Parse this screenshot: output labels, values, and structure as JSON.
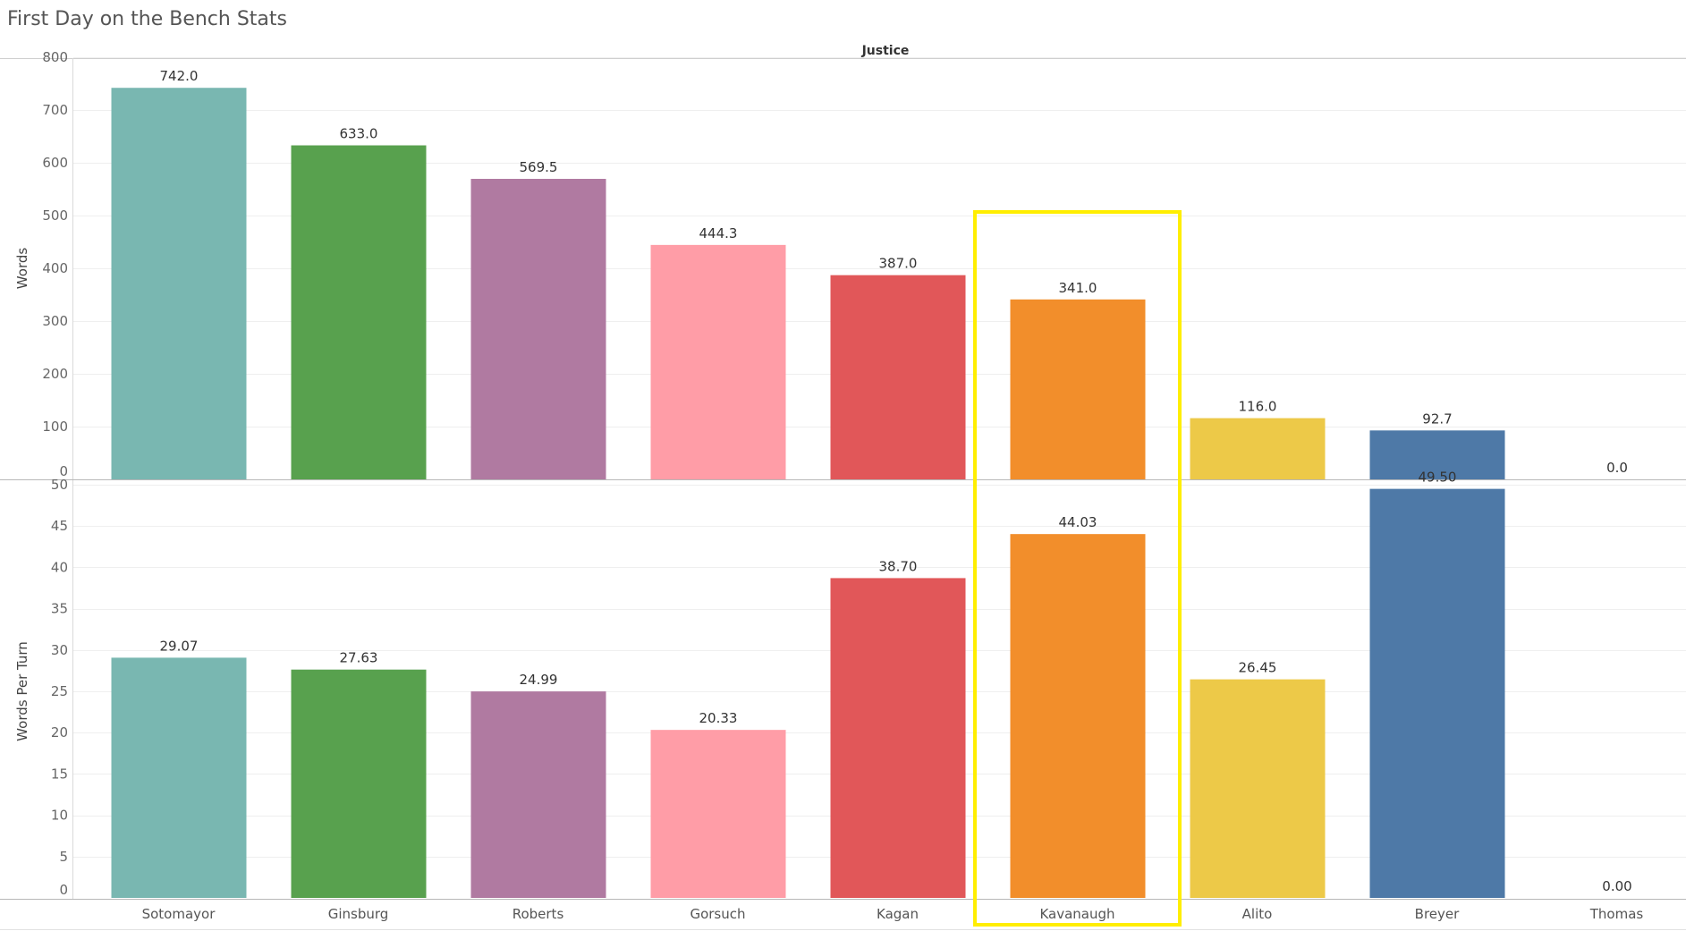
{
  "title": "First Day on the Bench Stats",
  "column_header": "Justice",
  "highlight": {
    "category": "Kavanaugh",
    "color": "#ffee00"
  },
  "chart_data": [
    {
      "type": "bar",
      "ylabel": "Words",
      "ylim": [
        0,
        800
      ],
      "yticks": [
        0,
        100,
        200,
        300,
        400,
        500,
        600,
        700,
        800
      ],
      "categories": [
        "Sotomayor",
        "Ginsburg",
        "Roberts",
        "Gorsuch",
        "Kagan",
        "Kavanaugh",
        "Alito",
        "Breyer",
        "Thomas"
      ],
      "values": [
        742.0,
        633.0,
        569.5,
        444.3,
        387.0,
        341.0,
        116.0,
        92.7,
        0.0
      ],
      "labels": [
        "742.0",
        "633.0",
        "569.5",
        "444.3",
        "387.0",
        "341.0",
        "116.0",
        "92.7",
        "0.0"
      ],
      "colors": [
        "#79b7b1",
        "#58a14e",
        "#b07aa1",
        "#ff9da7",
        "#e15759",
        "#f28e2b",
        "#edc948",
        "#4e79a7",
        "#bab0ac"
      ],
      "gridlines": true
    },
    {
      "type": "bar",
      "ylabel": "Words Per Turn",
      "ylim": [
        0,
        50
      ],
      "yticks": [
        0,
        5,
        10,
        15,
        20,
        25,
        30,
        35,
        40,
        45,
        50
      ],
      "categories": [
        "Sotomayor",
        "Ginsburg",
        "Roberts",
        "Gorsuch",
        "Kagan",
        "Kavanaugh",
        "Alito",
        "Breyer",
        "Thomas"
      ],
      "values": [
        29.07,
        27.63,
        24.99,
        20.33,
        38.7,
        44.03,
        26.45,
        49.5,
        0.0
      ],
      "labels": [
        "29.07",
        "27.63",
        "24.99",
        "20.33",
        "38.70",
        "44.03",
        "26.45",
        "49.50",
        "0.00"
      ],
      "colors": [
        "#79b7b1",
        "#58a14e",
        "#b07aa1",
        "#ff9da7",
        "#e15759",
        "#f28e2b",
        "#edc948",
        "#4e79a7",
        "#bab0ac"
      ],
      "gridlines": true
    }
  ]
}
